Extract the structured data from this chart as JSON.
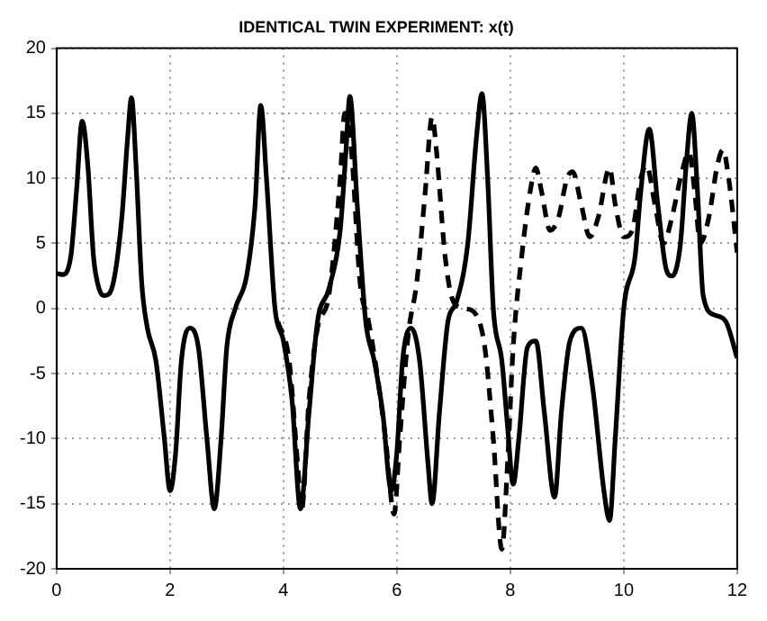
{
  "chart_data": {
    "type": "line",
    "title": "IDENTICAL TWIN EXPERIMENT: x(t)",
    "xlim": [
      0,
      12
    ],
    "xticks": [
      0,
      2,
      4,
      6,
      8,
      10,
      12
    ],
    "ylim": [
      -20,
      20
    ],
    "yticks": [
      -20,
      -15,
      -10,
      -5,
      0,
      5,
      10,
      15,
      20
    ],
    "grid": true,
    "legend": false,
    "marker": "none",
    "series": [
      {
        "color": "#000000",
        "line_style": "solid",
        "x": [
          0,
          0.1,
          0.25,
          0.35,
          0.45,
          0.55,
          0.65,
          0.75,
          0.85,
          1.0,
          1.15,
          1.25,
          1.32,
          1.4,
          1.5,
          1.6,
          1.75,
          1.9,
          2.0,
          2.1,
          2.2,
          2.35,
          2.5,
          2.65,
          2.78,
          2.9,
          3.0,
          3.15,
          3.35,
          3.5,
          3.6,
          3.7,
          3.85,
          4.0,
          4.15,
          4.3,
          4.45,
          4.6,
          4.8,
          5.0,
          5.1,
          5.17,
          5.3,
          5.45,
          5.6,
          5.75,
          5.9,
          6.0,
          6.1,
          6.25,
          6.4,
          6.55,
          6.62,
          6.75,
          6.9,
          7.05,
          7.25,
          7.4,
          7.5,
          7.6,
          7.7,
          7.85,
          7.95,
          8.05,
          8.15,
          8.3,
          8.45,
          8.6,
          8.78,
          8.9,
          9.05,
          9.25,
          9.45,
          9.65,
          9.75,
          9.85,
          10.0,
          10.2,
          10.3,
          10.45,
          10.6,
          10.75,
          10.85,
          11.0,
          11.1,
          11.2,
          11.3,
          11.4,
          11.6,
          11.8,
          12
        ],
        "values": [
          2.7,
          2.6,
          4,
          9,
          14.4,
          11,
          4,
          1.5,
          1,
          2,
          7,
          13,
          16.2,
          11,
          2,
          -1.5,
          -4,
          -10,
          -14,
          -11,
          -4,
          -1.5,
          -3,
          -10,
          -15.4,
          -10,
          -3,
          0,
          2.5,
          8,
          15.6,
          10,
          0,
          -2.5,
          -7,
          -15.4,
          -8,
          -1,
          1.5,
          6,
          12,
          16.3,
          8,
          -1,
          -4,
          -8,
          -14,
          -11,
          -4,
          -1.5,
          -4,
          -12,
          -15,
          -8,
          -1,
          0.5,
          5,
          13,
          16.5,
          10,
          0,
          -4,
          -9,
          -13.5,
          -10,
          -3,
          -2.5,
          -8,
          -14.5,
          -8,
          -2.5,
          -1.5,
          -6,
          -14,
          -16.3,
          -10,
          0,
          4,
          9,
          13.8,
          8,
          3,
          2.5,
          5,
          11,
          15,
          9,
          1,
          -0.5,
          -1,
          -3.8
        ]
      },
      {
        "color": "#000000",
        "line_style": "dashed",
        "x": [
          3.9,
          4.1,
          4.25,
          4.32,
          4.45,
          4.6,
          4.8,
          5.0,
          5.08,
          5.2,
          5.35,
          5.5,
          5.65,
          5.8,
          5.95,
          6.05,
          6.2,
          6.35,
          6.5,
          6.62,
          6.7,
          6.85,
          7.0,
          7.2,
          7.4,
          7.55,
          7.7,
          7.85,
          7.95,
          8.05,
          8.2,
          8.35,
          8.45,
          8.55,
          8.7,
          8.85,
          9.0,
          9.1,
          9.25,
          9.4,
          9.55,
          9.75,
          9.85,
          10.0,
          10.15,
          10.3,
          10.4,
          10.55,
          10.7,
          10.85,
          11.0,
          11.15,
          11.25,
          11.35,
          11.5,
          11.65,
          11.75,
          11.85,
          12
        ],
        "values": [
          -1,
          -4,
          -12,
          -15.5,
          -7,
          -1.5,
          1,
          10,
          15,
          12,
          2,
          -1,
          -5,
          -10,
          -15.8,
          -10,
          -2,
          2,
          9,
          14.7,
          12,
          4,
          0.5,
          0,
          -0.5,
          -3,
          -10,
          -18.5,
          -12,
          -3,
          4,
          9,
          10.8,
          9,
          6,
          7,
          10,
          10.5,
          8,
          5.5,
          7,
          10.8,
          8,
          5.5,
          6,
          10,
          11,
          8,
          5,
          7,
          10,
          12,
          9,
          5,
          7,
          11,
          12.2,
          10,
          4.3
        ]
      }
    ]
  }
}
